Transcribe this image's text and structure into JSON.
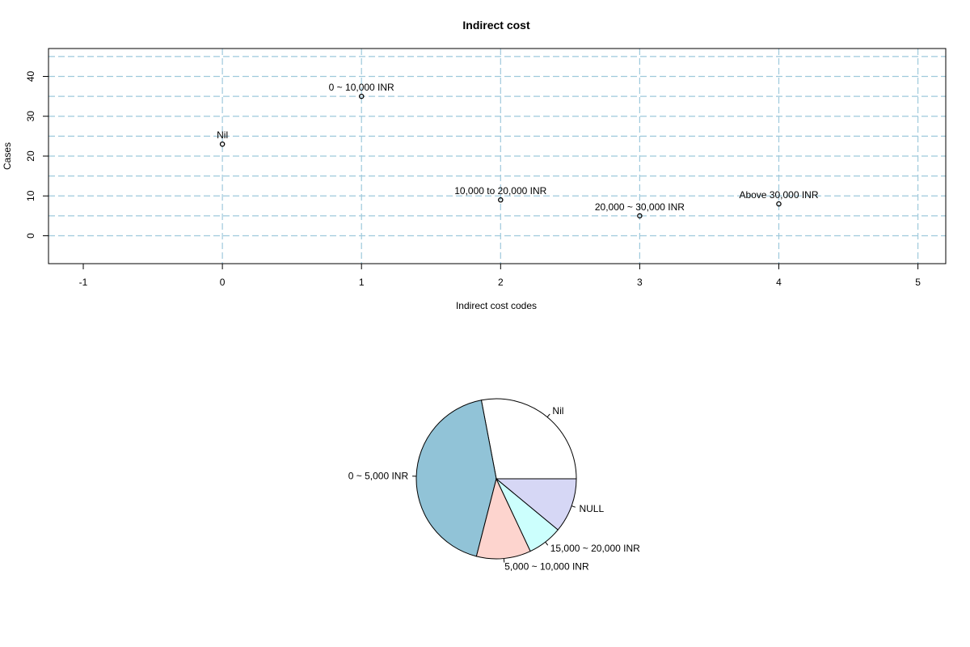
{
  "chart_data": [
    {
      "type": "scatter",
      "title": "Indirect cost",
      "xlabel": "Indirect cost codes",
      "ylabel": "Cases",
      "xlim": [
        -1.25,
        5.2
      ],
      "ylim": [
        -7,
        47
      ],
      "x_ticks": [
        -1,
        0,
        1,
        2,
        3,
        4,
        5
      ],
      "y_ticks": [
        0,
        10,
        20,
        30,
        40
      ],
      "grid": true,
      "grid_x": [
        0,
        1,
        2,
        3,
        4,
        5
      ],
      "grid_y": [
        0,
        5,
        10,
        15,
        20,
        25,
        30,
        35,
        40,
        45
      ],
      "points": [
        {
          "x": 0,
          "y": 23,
          "label": "Nil"
        },
        {
          "x": 1,
          "y": 35,
          "label": "0 ~ 10,000 INR"
        },
        {
          "x": 2,
          "y": 9,
          "label": "10,000 to 20,000 INR"
        },
        {
          "x": 3,
          "y": 5,
          "label": "20,000 ~ 30,000 INR"
        },
        {
          "x": 4,
          "y": 8,
          "label": "Above 30,000 INR"
        }
      ],
      "colors": {
        "grid": "#9ec9dc",
        "point": "#000000"
      }
    },
    {
      "type": "pie",
      "slices": [
        {
          "label": "Nil",
          "value": 28,
          "color": "#ffffff"
        },
        {
          "label": "0 ~ 5,000 INR",
          "value": 43,
          "color": "#91c3d7"
        },
        {
          "label": "5,000 ~ 10,000 INR",
          "value": 11,
          "color": "#fdd4ce"
        },
        {
          "label": "15,000 ~ 20,000 INR",
          "value": 7,
          "color": "#ccfffd"
        },
        {
          "label": "NULL",
          "value": 11,
          "color": "#d6d7f5"
        }
      ]
    }
  ]
}
